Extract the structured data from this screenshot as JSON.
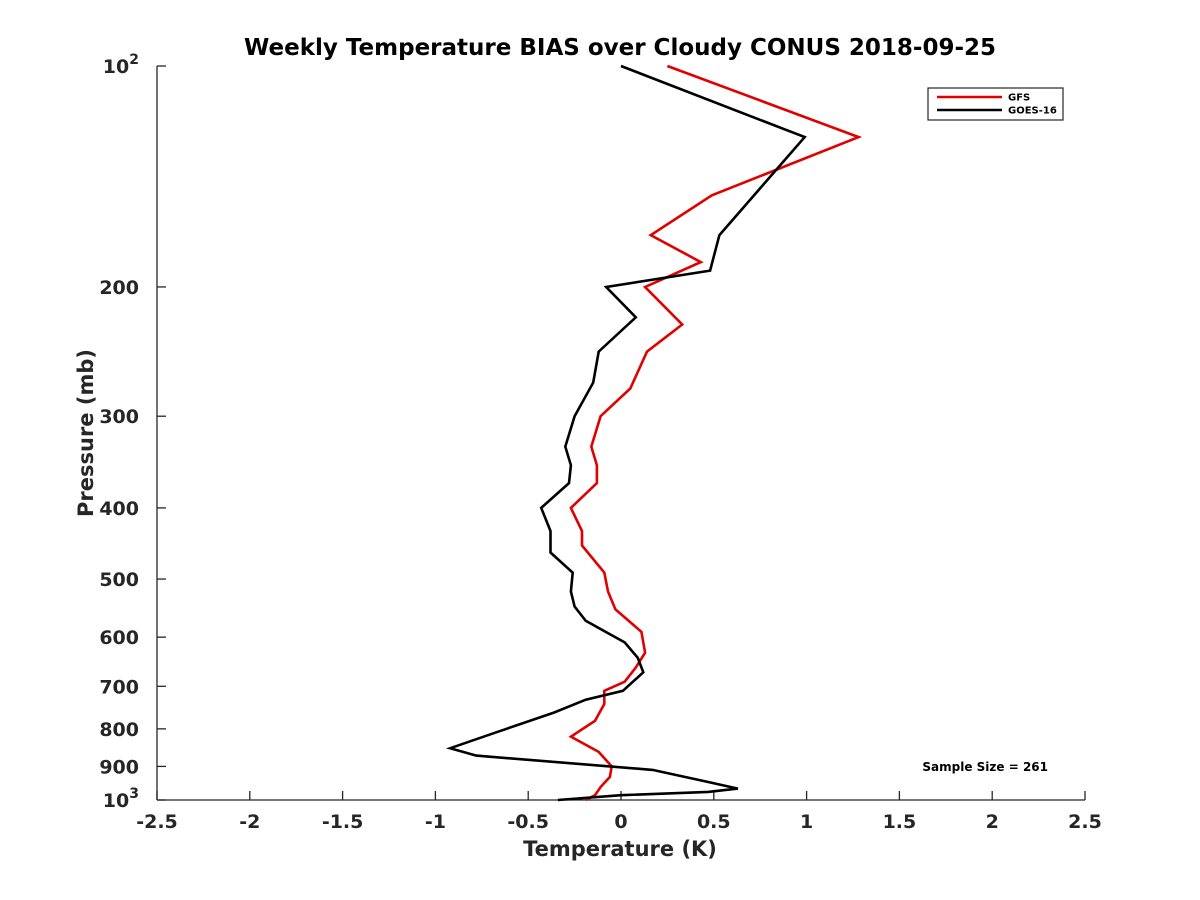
{
  "chart_data": {
    "type": "line",
    "title": "Weekly Temperature BIAS over Cloudy CONUS 2018-09-25",
    "xlabel": "Temperature (K)",
    "ylabel": "Pressure (mb)",
    "xlim": [
      -2.5,
      2.5
    ],
    "ylim": [
      100,
      1000
    ],
    "y_scale": "log",
    "y_reversed": true,
    "grid": false,
    "legend_position": "top-right",
    "x_ticks": [
      "-2.5",
      "-2",
      "-1.5",
      "-1",
      "-0.5",
      "0",
      "0.5",
      "1",
      "1.5",
      "2",
      "2.5"
    ],
    "x_tick_values": [
      -2.5,
      -2,
      -1.5,
      -1,
      -0.5,
      0,
      0.5,
      1,
      1.5,
      2,
      2.5
    ],
    "y_ticks": [
      {
        "value": 100,
        "base": "10",
        "exp": "2"
      },
      {
        "value": 200,
        "label": "200"
      },
      {
        "value": 300,
        "label": "300"
      },
      {
        "value": 400,
        "label": "400"
      },
      {
        "value": 500,
        "label": "500"
      },
      {
        "value": 600,
        "label": "600"
      },
      {
        "value": 700,
        "label": "700"
      },
      {
        "value": 800,
        "label": "800"
      },
      {
        "value": 900,
        "label": "900"
      },
      {
        "value": 1000,
        "base": "10",
        "exp": "3"
      }
    ],
    "annotation": "Sample Size = 261",
    "series": [
      {
        "name": "GFS",
        "color": "#e00000",
        "points": [
          [
            0.25,
            100
          ],
          [
            1.28,
            125
          ],
          [
            0.49,
            150
          ],
          [
            0.16,
            170
          ],
          [
            0.43,
            185
          ],
          [
            0.13,
            200
          ],
          [
            0.33,
            225
          ],
          [
            0.14,
            245
          ],
          [
            0.05,
            275
          ],
          [
            -0.11,
            300
          ],
          [
            -0.16,
            330
          ],
          [
            -0.13,
            350
          ],
          [
            -0.13,
            370
          ],
          [
            -0.27,
            400
          ],
          [
            -0.21,
            430
          ],
          [
            -0.21,
            450
          ],
          [
            -0.09,
            490
          ],
          [
            -0.07,
            520
          ],
          [
            -0.03,
            550
          ],
          [
            0.11,
            590
          ],
          [
            0.13,
            630
          ],
          [
            0.08,
            660
          ],
          [
            0.02,
            690
          ],
          [
            -0.09,
            710
          ],
          [
            -0.09,
            740
          ],
          [
            -0.14,
            780
          ],
          [
            -0.27,
            820
          ],
          [
            -0.12,
            860
          ],
          [
            -0.05,
            900
          ],
          [
            -0.06,
            930
          ],
          [
            -0.11,
            960
          ],
          [
            -0.14,
            985
          ],
          [
            -0.19,
            1000
          ]
        ]
      },
      {
        "name": "GOES-16",
        "color": "#000000",
        "points": [
          [
            0.0,
            100
          ],
          [
            0.99,
            125
          ],
          [
            0.53,
            170
          ],
          [
            0.48,
            190
          ],
          [
            -0.08,
            200
          ],
          [
            0.08,
            220
          ],
          [
            -0.12,
            245
          ],
          [
            -0.15,
            270
          ],
          [
            -0.25,
            300
          ],
          [
            -0.3,
            330
          ],
          [
            -0.27,
            350
          ],
          [
            -0.28,
            370
          ],
          [
            -0.43,
            400
          ],
          [
            -0.38,
            430
          ],
          [
            -0.38,
            460
          ],
          [
            -0.26,
            490
          ],
          [
            -0.27,
            520
          ],
          [
            -0.25,
            545
          ],
          [
            -0.19,
            570
          ],
          [
            0.02,
            610
          ],
          [
            0.09,
            640
          ],
          [
            0.12,
            670
          ],
          [
            0.01,
            710
          ],
          [
            -0.19,
            730
          ],
          [
            -0.36,
            760
          ],
          [
            -0.68,
            810
          ],
          [
            -0.92,
            850
          ],
          [
            -0.78,
            870
          ],
          [
            0.17,
            910
          ],
          [
            0.47,
            945
          ],
          [
            0.63,
            965
          ],
          [
            0.47,
            975
          ],
          [
            0.0,
            985
          ],
          [
            -0.34,
            1000
          ]
        ]
      }
    ]
  }
}
